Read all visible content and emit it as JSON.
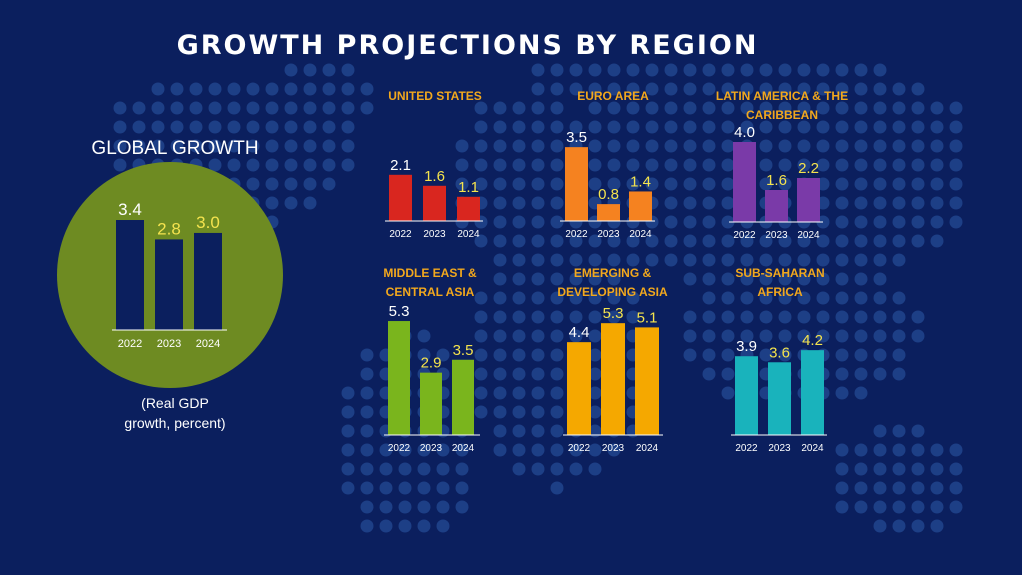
{
  "title": "GROWTH PROJECTIONS BY REGION",
  "global": {
    "title": "GLOBAL GROWTH",
    "note_line1": "(Real GDP",
    "note_line2": "growth, percent)"
  },
  "colors": {
    "background": "#0b1f5e",
    "dots": "#1d3f86",
    "title_accent": "#f2a81d",
    "global_circle": "#6e8b22",
    "global_bar": "#0b1f5e",
    "value_yellow": "#f4e34e"
  },
  "chart_data": [
    {
      "type": "bar",
      "title": "GLOBAL GROWTH",
      "categories": [
        "2022",
        "2023",
        "2024"
      ],
      "values": [
        3.4,
        2.8,
        3.0
      ],
      "labels": [
        "3.4",
        "2.8",
        "3.0"
      ],
      "color": "#0b1f5e"
    },
    {
      "type": "bar",
      "title": "UNITED STATES",
      "categories": [
        "2022",
        "2023",
        "2024"
      ],
      "values": [
        2.1,
        1.6,
        1.1
      ],
      "labels": [
        "2.1",
        "1.6",
        "1.1"
      ],
      "color": "#d9261f"
    },
    {
      "type": "bar",
      "title": "EURO AREA",
      "categories": [
        "2022",
        "2023",
        "2024"
      ],
      "values": [
        3.5,
        0.8,
        1.4
      ],
      "labels": [
        "3.5",
        "0.8",
        "1.4"
      ],
      "color": "#f58220"
    },
    {
      "type": "bar",
      "title": "LATIN AMERICA & THE CARIBBEAN",
      "categories": [
        "2022",
        "2023",
        "2024"
      ],
      "values": [
        4.0,
        1.6,
        2.2
      ],
      "labels": [
        "4.0",
        "1.6",
        "2.2"
      ],
      "color": "#7a3aa8"
    },
    {
      "type": "bar",
      "title": "MIDDLE EAST & CENTRAL ASIA",
      "categories": [
        "2022",
        "2023",
        "2024"
      ],
      "values": [
        5.3,
        2.9,
        3.5
      ],
      "labels": [
        "5.3",
        "2.9",
        "3.5"
      ],
      "color": "#7ab51d"
    },
    {
      "type": "bar",
      "title": "EMERGING & DEVELOPING ASIA",
      "categories": [
        "2022",
        "2023",
        "2024"
      ],
      "values": [
        4.4,
        5.3,
        5.1
      ],
      "labels": [
        "4.4",
        "5.3",
        "5.1"
      ],
      "color": "#f5a800"
    },
    {
      "type": "bar",
      "title": "SUB-SAHARAN AFRICA",
      "categories": [
        "2022",
        "2023",
        "2024"
      ],
      "values": [
        3.9,
        3.6,
        4.2
      ],
      "labels": [
        "3.9",
        "3.6",
        "4.2"
      ],
      "color": "#19b3bc"
    }
  ]
}
